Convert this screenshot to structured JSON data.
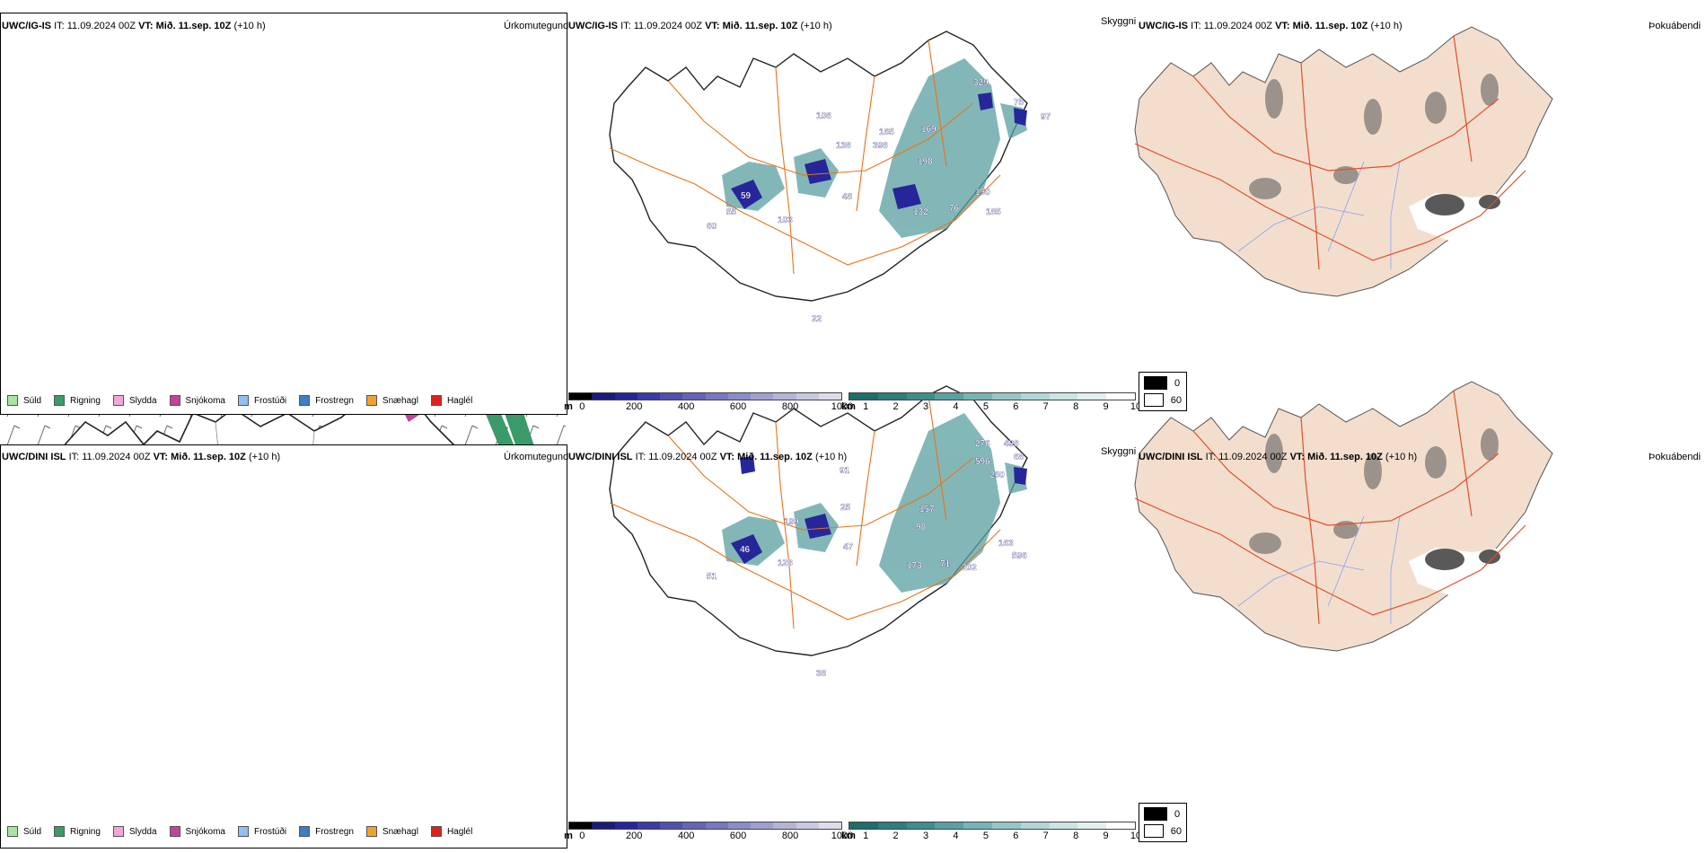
{
  "panels": {
    "top": {
      "precip": {
        "model": "UWC/IG-IS",
        "it_label": "IT:",
        "it_value": "11.09.2024 00Z",
        "vt_label": "VT:",
        "vt_value": "Mið. 11.sep. 10Z",
        "lead": "(+10 h)",
        "variable": "Úrkomutegund"
      },
      "ceiling": {
        "model": "UWC/IG-IS",
        "it_label": "IT:",
        "it_value": "11.09.2024 00Z",
        "vt_label": "VT:",
        "vt_value": "Mið. 11.sep. 10Z",
        "lead": "(+10 h)",
        "variable": "Skyggni"
      },
      "fog": {
        "model": "UWC/IG-IS",
        "it_label": "IT:",
        "it_value": "11.09.2024 00Z",
        "vt_label": "VT:",
        "vt_value": "Mið. 11.sep. 10Z",
        "lead": "(+10 h)",
        "variable": "Þokuábendi"
      }
    },
    "bottom": {
      "precip": {
        "model": "UWC/DINI ISL",
        "it_label": "IT:",
        "it_value": "11.09.2024 00Z",
        "vt_label": "VT:",
        "vt_value": "Mið. 11.sep. 10Z",
        "lead": "(+10 h)",
        "variable": "Úrkomutegund"
      },
      "ceiling": {
        "model": "UWC/DINI ISL",
        "it_label": "IT:",
        "it_value": "11.09.2024 00Z",
        "vt_label": "VT:",
        "vt_value": "Mið. 11.sep. 10Z",
        "lead": "(+10 h)",
        "variable": "Skyggni"
      },
      "fog": {
        "model": "UWC/DINI ISL",
        "it_label": "IT:",
        "it_value": "11.09.2024 00Z",
        "vt_label": "VT:",
        "vt_value": "Mið. 11.sep. 10Z",
        "lead": "(+10 h)",
        "variable": "Þokuábendi"
      }
    }
  },
  "precip_legend": [
    {
      "label": "Súld",
      "color": "#a8e6a0"
    },
    {
      "label": "Rigning",
      "color": "#3a9a6a"
    },
    {
      "label": "Slydda",
      "color": "#f0a8d8"
    },
    {
      "label": "Snjókoma",
      "color": "#c0449a"
    },
    {
      "label": "Frostúði",
      "color": "#8ec0f0"
    },
    {
      "label": "Frostregn",
      "color": "#3a7fc8"
    },
    {
      "label": "Snæhagl",
      "color": "#f0a030"
    },
    {
      "label": "Haglél",
      "color": "#e02020"
    }
  ],
  "ceiling_scale": {
    "unit": "m",
    "ticks": [
      "0",
      "200",
      "400",
      "600",
      "800",
      "1000"
    ],
    "colors": [
      "#000000",
      "#1a1a7a",
      "#26269a",
      "#3a3aa8",
      "#5050b0",
      "#6464b8",
      "#7878c0",
      "#8c8cc8",
      "#a0a0d0",
      "#b4b4d8",
      "#c8c8e0",
      "#dcdcea"
    ]
  },
  "visibility_scale": {
    "unit": "km",
    "ticks": [
      "1",
      "2",
      "3",
      "4",
      "5",
      "6",
      "7",
      "8",
      "9",
      "10"
    ],
    "colors": [
      "#1e6e6a",
      "#2e7e7a",
      "#3e8e8a",
      "#5aa0a0",
      "#78b4b4",
      "#96c6c6",
      "#b2d6d6",
      "#cce4e4",
      "#e2efef",
      "#ffffff"
    ]
  },
  "fog_legend": [
    {
      "label": "0",
      "color": "#000000"
    },
    {
      "label": "60",
      "color": "#ffffff"
    }
  ],
  "ceiling_labels": {
    "top": [
      "329",
      "75",
      "97",
      "108",
      "165",
      "169",
      "138",
      "398",
      "198",
      "59",
      "48",
      "150",
      "55",
      "132",
      "76",
      "185",
      "60",
      "103",
      "22"
    ],
    "bottom": [
      "276",
      "498",
      "596",
      "250",
      "68",
      "91",
      "25",
      "199",
      "157",
      "98",
      "47",
      "46",
      "163",
      "596",
      "173",
      "71",
      "202",
      "51",
      "128",
      "38"
    ]
  },
  "colors": {
    "coast": "#222222",
    "roads": "#e8731a",
    "fog_land": "#f3dece",
    "fog_roads": "#e0502a",
    "fog_rivers": "#8aa0f0"
  }
}
